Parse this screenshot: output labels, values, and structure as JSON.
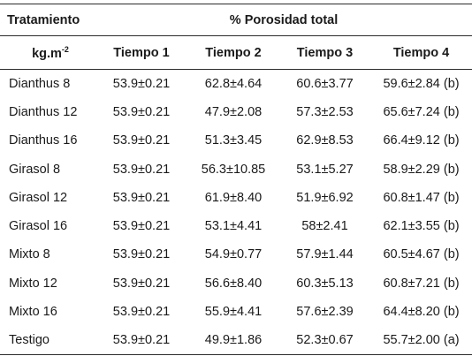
{
  "header": {
    "treatment_label": "Tratamiento",
    "group_label": "% Porosidad total",
    "unit_label": "kg.m",
    "unit_exp": "-2",
    "columns": [
      "Tiempo 1",
      "Tiempo 2",
      "Tiempo 3",
      "Tiempo 4"
    ]
  },
  "rows": [
    {
      "name": "Dianthus 8",
      "t1": "53.9±0.21",
      "t2": "62.8±4.64",
      "t3": "60.6±3.77",
      "t4": "59.6±2.84 (b)"
    },
    {
      "name": "Dianthus 12",
      "t1": "53.9±0.21",
      "t2": "47.9±2.08",
      "t3": "57.3±2.53",
      "t4": "65.6±7.24 (b)"
    },
    {
      "name": "Dianthus 16",
      "t1": "53.9±0.21",
      "t2": "51.3±3.45",
      "t3": "62.9±8.53",
      "t4": "66.4±9.12 (b)"
    },
    {
      "name": "Girasol 8",
      "t1": "53.9±0.21",
      "t2": "56.3±10.85",
      "t3": "53.1±5.27",
      "t4": "58.9±2.29 (b)"
    },
    {
      "name": "Girasol 12",
      "t1": "53.9±0.21",
      "t2": "61.9±8.40",
      "t3": "51.9±6.92",
      "t4": "60.8±1.47 (b)"
    },
    {
      "name": "Girasol 16",
      "t1": "53.9±0.21",
      "t2": "53.1±4.41",
      "t3": "58±2.41",
      "t4": "62.1±3.55 (b)"
    },
    {
      "name": "Mixto 8",
      "t1": "53.9±0.21",
      "t2": "54.9±0.77",
      "t3": "57.9±1.44",
      "t4": "60.5±4.67 (b)"
    },
    {
      "name": "Mixto 12",
      "t1": "53.9±0.21",
      "t2": "56.6±8.40",
      "t3": "60.3±5.13",
      "t4": "60.8±7.21 (b)"
    },
    {
      "name": "Mixto 16",
      "t1": "53.9±0.21",
      "t2": "55.9±4.41",
      "t3": "57.6±2.39",
      "t4": "64.4±8.20 (b)"
    },
    {
      "name": "Testigo",
      "t1": "53.9±0.21",
      "t2": "49.9±1.86",
      "t3": "52.3±0.67",
      "t4": "55.7±2.00 (a)"
    }
  ]
}
